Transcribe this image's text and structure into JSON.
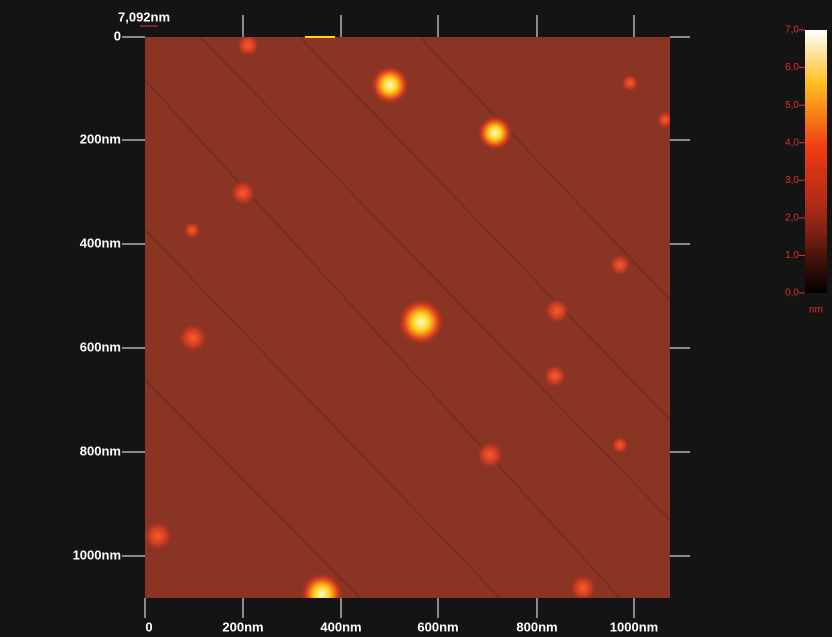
{
  "scale_label": "7,092nm",
  "y_axis": {
    "labels": [
      "0",
      "200nm",
      "400nm",
      "600nm",
      "800nm",
      "1000nm"
    ]
  },
  "x_axis": {
    "labels": [
      "0",
      "200nm",
      "400nm",
      "600nm",
      "800nm",
      "1000nm"
    ]
  },
  "colorbar": {
    "labels": [
      "7,0",
      "6,0",
      "5,0",
      "4,0",
      "3,0",
      "2,0",
      "1,0",
      "0,0"
    ],
    "unit": "nm"
  }
}
